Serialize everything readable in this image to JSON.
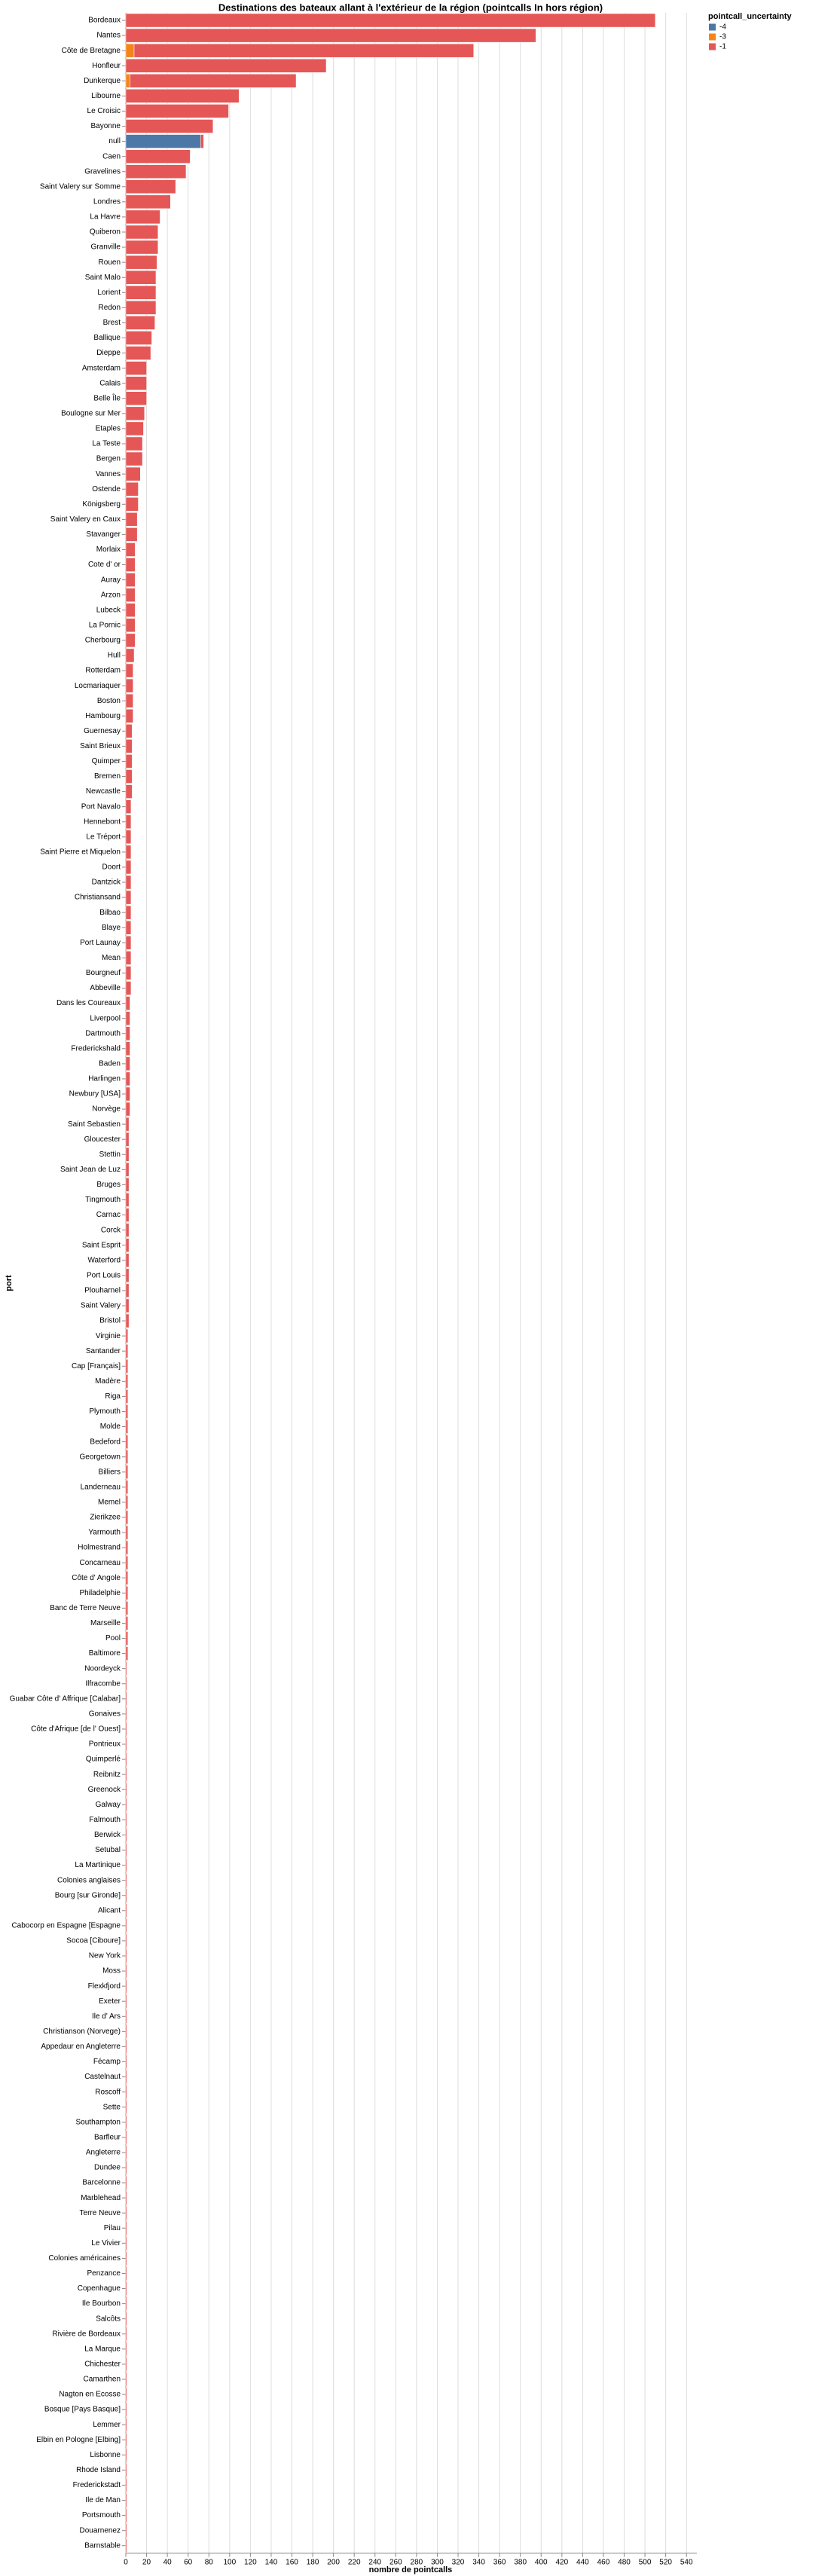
{
  "chart_data": {
    "type": "stacked_barh",
    "title": "Destinations des bateaux allant à l'extérieur de la région (pointcalls In hors région)",
    "x_label": "nombre de pointcalls",
    "y_label": "port",
    "legend_title": "pointcall_uncertainty",
    "legend_position": "top-right",
    "grid": true,
    "xlim": [
      0,
      550
    ],
    "xticks": [
      0,
      20,
      40,
      60,
      80,
      100,
      120,
      140,
      160,
      180,
      200,
      220,
      240,
      260,
      280,
      300,
      320,
      340,
      360,
      380,
      400,
      420,
      440,
      460,
      480,
      500,
      520,
      540
    ],
    "categories": [
      "Bordeaux",
      "Nantes",
      "Côte de Bretagne",
      "Honfleur",
      "Dunkerque",
      "Libourne",
      "Le Croisic",
      "Bayonne",
      "null",
      "Caen",
      "Gravelines",
      "Saint Valery sur Somme",
      "Londres",
      "La Havre",
      "Quiberon",
      "Granville",
      "Rouen",
      "Saint Malo",
      "Lorient",
      "Redon",
      "Brest",
      "Ballique",
      "Dieppe",
      "Amsterdam",
      "Calais",
      "Belle Île",
      "Boulogne sur Mer",
      "Etaples",
      "La Teste",
      "Bergen",
      "Vannes",
      "Ostende",
      "Königsberg",
      "Saint Valery en Caux",
      "Stavanger",
      "Morlaix",
      "Cote d' or",
      "Auray",
      "Arzon",
      "Lubeck",
      "La Pornic",
      "Cherbourg",
      "Hull",
      "Rotterdam",
      "Locmariaquer",
      "Boston",
      "Hambourg",
      "Guernesay",
      "Saint Brieux",
      "Quimper",
      "Bremen",
      "Newcastle",
      "Port Navalo",
      "Hennebont",
      "Le Tréport",
      "Saint Pierre et Miquelon",
      "Doort",
      "Dantzick",
      "Christiansand",
      "Bilbao",
      "Blaye",
      "Port Launay",
      "Mean",
      "Bourgneuf",
      "Abbeville",
      "Dans les Coureaux",
      "Liverpool",
      "Dartmouth",
      "Frederickshald",
      "Baden",
      "Harlingen",
      "Newbury [USA]",
      "Norvège",
      "Saint Sebastien",
      "Gloucester",
      "Stettin",
      "Saint Jean de Luz",
      "Bruges",
      "Tingmouth",
      "Carnac",
      "Corck",
      "Saint Esprit",
      "Waterford",
      "Port Louis",
      "Plouharnel",
      "Saint Valery",
      "Bristol",
      "Virginie",
      "Santander",
      "Cap [Français]",
      "Madère",
      "Riga",
      "Plymouth",
      "Molde",
      "Bedeford",
      "Georgetown",
      "Billiers",
      "Landerneau",
      "Memel",
      "Zierikzee",
      "Yarmouth",
      "Holmestrand",
      "Concarneau",
      "Côte d' Angole",
      "Philadelphie",
      "Banc de Terre Neuve",
      "Marseille",
      "Pool",
      "Baltimore",
      "Noordeyck",
      "Ilfracombe",
      "Guabar Côte d' Affrique [Calabar]",
      "Gonaives",
      "Côte d'Afrique [de l' Ouest]",
      "Pontrieux",
      "Quimperlé",
      "Reibnitz",
      "Greenock",
      "Galway",
      "Falmouth",
      "Berwick",
      "Setubal",
      "La Martinique",
      "Colonies anglaises",
      "Bourg [sur Gironde]",
      "Alicant",
      "Cabocorp en Espagne [Espagne",
      "Socoa [Ciboure]",
      "New York",
      "Moss",
      "Flexkfjord",
      "Exeter",
      "Ile d' Ars",
      "Christianson (Norvege)",
      "Appedaur en Angleterre",
      "Fécamp",
      "Castelnaut",
      "Roscoff",
      "Sette",
      "Southampton",
      "Barfleur",
      "Angleterre",
      "Dundee",
      "Barcelonne",
      "Marblehead",
      "Terre Neuve",
      "Pilau",
      "Le Vivier",
      "Colonies américaines",
      "Penzance",
      "Copenhague",
      "Ile Bourbon",
      "Salcôts",
      "Rivière de Bordeaux",
      "La Marque",
      "Chichester",
      "Camarthen",
      "Nagton en Ecosse",
      "Bosque [Pays Basque]",
      "Lemmer",
      "Elbin en Pologne [Elbing]",
      "Lisbonne",
      "Rhode Island",
      "Frederickstadt",
      "Ile de Man",
      "Portsmouth",
      "Douarnenez",
      "Barnstable"
    ],
    "series": [
      {
        "name": "-4",
        "color": "#4c78a8",
        "values": [
          null,
          null,
          null,
          null,
          null,
          null,
          null,
          null,
          72,
          null,
          null,
          null,
          null,
          null,
          null,
          null,
          null,
          null,
          null,
          null,
          null,
          null,
          null,
          null,
          null,
          null,
          null,
          null,
          null,
          null,
          null,
          null,
          null,
          null,
          null,
          null,
          null,
          null,
          null,
          null,
          null,
          null,
          null,
          null,
          null,
          null,
          null,
          null,
          null,
          null,
          null,
          null,
          null,
          null,
          null,
          null,
          null,
          null,
          null,
          null,
          null,
          null,
          null,
          null,
          null,
          null,
          null,
          null,
          null,
          null,
          null,
          null,
          null,
          null,
          null,
          null,
          null,
          null,
          null,
          null,
          null,
          null,
          null,
          null,
          null,
          null,
          null,
          null,
          null,
          null,
          null,
          null,
          null,
          null,
          null,
          null,
          null,
          null,
          null,
          null,
          null,
          null,
          null,
          null,
          null,
          null,
          null,
          null,
          null,
          null,
          null,
          null,
          null,
          null,
          null,
          null,
          null,
          null,
          null,
          null,
          null,
          null,
          null,
          null,
          null,
          null,
          null,
          null,
          null,
          null,
          null,
          null,
          null,
          null,
          null,
          null,
          null,
          null,
          null,
          null,
          null,
          null,
          null,
          null,
          null,
          null,
          null,
          null,
          null,
          null,
          null,
          null,
          null,
          null,
          null,
          null,
          null,
          null,
          null,
          null,
          null,
          null,
          null,
          null,
          null,
          null,
          null,
          null
        ]
      },
      {
        "name": "-3",
        "color": "#f58518",
        "values": [
          null,
          null,
          8,
          null,
          4,
          null,
          null,
          null,
          null,
          null,
          null,
          null,
          null,
          null,
          null,
          null,
          null,
          null,
          null,
          null,
          null,
          null,
          null,
          null,
          null,
          null,
          null,
          null,
          null,
          null,
          null,
          null,
          null,
          null,
          null,
          null,
          null,
          null,
          null,
          null,
          null,
          null,
          null,
          null,
          null,
          null,
          null,
          null,
          null,
          null,
          null,
          null,
          null,
          null,
          null,
          null,
          null,
          null,
          null,
          null,
          null,
          null,
          null,
          null,
          null,
          null,
          null,
          null,
          null,
          null,
          null,
          null,
          null,
          null,
          null,
          null,
          null,
          null,
          null,
          null,
          null,
          null,
          null,
          null,
          null,
          null,
          null,
          null,
          null,
          null,
          null,
          null,
          null,
          null,
          null,
          null,
          null,
          null,
          null,
          null,
          null,
          null,
          null,
          null,
          null,
          null,
          null,
          null,
          null,
          null,
          null,
          null,
          null,
          null,
          null,
          null,
          null,
          null,
          null,
          null,
          null,
          null,
          null,
          null,
          null,
          null,
          null,
          null,
          null,
          null,
          null,
          null,
          null,
          null,
          null,
          null,
          null,
          null,
          null,
          null,
          null,
          null,
          null,
          null,
          null,
          null,
          null,
          null,
          null,
          null,
          null,
          null,
          null,
          null,
          null,
          null,
          null,
          null,
          null,
          null,
          null,
          null,
          null,
          null,
          null,
          null,
          null,
          null
        ]
      },
      {
        "name": "-1",
        "color": "#e45756",
        "values": [
          510,
          395,
          327,
          193,
          160,
          109,
          99,
          84,
          3,
          62,
          58,
          48,
          43,
          33,
          31,
          31,
          30,
          29,
          29,
          29,
          28,
          25,
          24,
          20,
          20,
          20,
          18,
          17,
          16,
          16,
          14,
          12,
          12,
          11,
          11,
          9,
          9,
          9,
          9,
          9,
          9,
          9,
          8,
          7,
          7,
          7,
          7,
          6,
          6,
          6,
          6,
          6,
          5,
          5,
          5,
          5,
          5,
          5,
          5,
          5,
          5,
          5,
          5,
          5,
          5,
          4,
          4,
          4,
          4,
          4,
          4,
          4,
          4,
          3,
          3,
          3,
          3,
          3,
          3,
          3,
          3,
          3,
          3,
          3,
          3,
          3,
          3,
          2,
          2,
          2,
          2,
          2,
          2,
          2,
          2,
          2,
          2,
          2,
          2,
          2,
          2,
          2,
          2,
          2,
          2,
          2,
          2,
          2,
          2,
          1,
          1,
          1,
          1,
          1,
          1,
          1,
          1,
          1,
          1,
          1,
          1,
          1,
          1,
          1,
          1,
          1,
          1,
          1,
          1,
          1,
          1,
          1,
          1,
          1,
          1,
          1,
          1,
          1,
          1,
          1,
          1,
          1,
          1,
          1,
          1,
          1,
          1,
          1,
          1,
          1,
          1,
          1,
          1,
          1,
          1,
          1,
          1,
          1,
          1,
          1,
          1,
          1,
          1,
          1,
          1,
          1,
          1,
          1
        ]
      }
    ]
  }
}
